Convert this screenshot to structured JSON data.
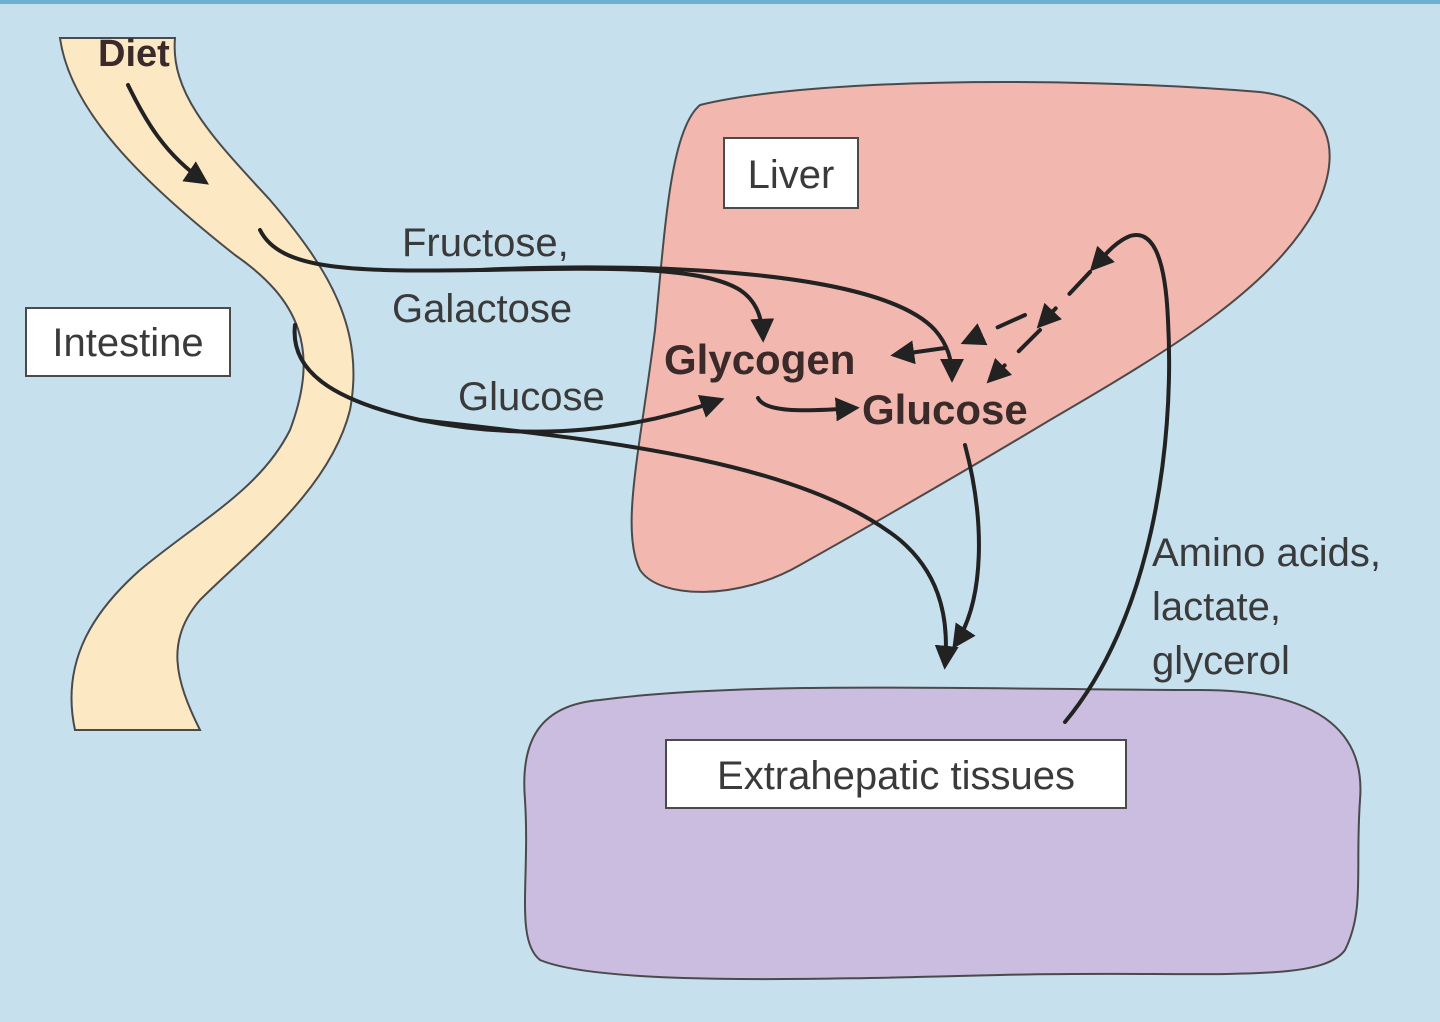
{
  "labels": {
    "diet": "Diet",
    "intestine": "Intestine",
    "liver": "Liver",
    "extrahepatic": "Extrahepatic tissues",
    "fructose": "Fructose,",
    "galactose": "Galactose",
    "glucose_input": "Glucose",
    "glycogen": "Glycogen",
    "glucose_liver": "Glucose",
    "amino_1": "Amino acids,",
    "amino_2": "lactate,",
    "amino_3": "glycerol"
  },
  "colors": {
    "background": "#c6e0ee",
    "intestine": "#fde8c4",
    "liver": "#f2b8b0",
    "extrahepatic": "#cbbde0",
    "arrow": "#222222"
  }
}
